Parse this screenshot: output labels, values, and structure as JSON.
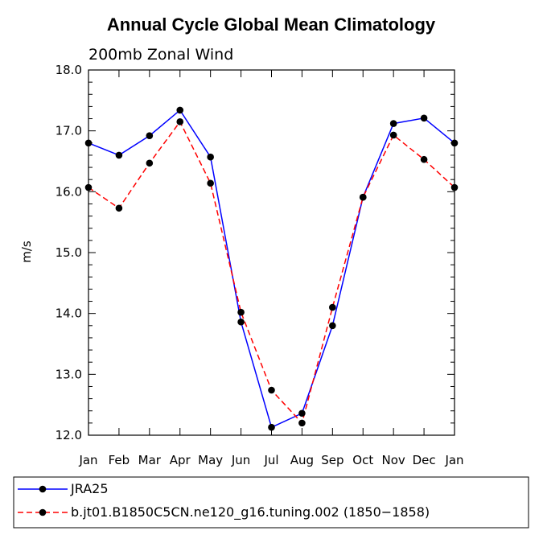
{
  "chart_data": {
    "type": "line",
    "title": "Annual Cycle Global Mean Climatology",
    "subtitle": "200mb Zonal Wind",
    "xlabel": "",
    "ylabel": "m/s",
    "categories": [
      "Jan",
      "Feb",
      "Mar",
      "Apr",
      "May",
      "Jun",
      "Jul",
      "Aug",
      "Sep",
      "Oct",
      "Nov",
      "Dec",
      "Jan"
    ],
    "ylim": [
      12.0,
      18.0
    ],
    "yticks": [
      "12.0",
      "13.0",
      "14.0",
      "15.0",
      "16.0",
      "17.0",
      "18.0"
    ],
    "series": [
      {
        "name": "JRA25",
        "color": "#0000ff",
        "style": "solid",
        "values": [
          16.8,
          16.6,
          16.92,
          17.34,
          16.57,
          13.86,
          12.13,
          12.36,
          13.8,
          15.91,
          17.12,
          17.21,
          16.8
        ]
      },
      {
        "name": "b.jt01.B1850C5CN.ne120_g16.tuning.002 (1850−1858)",
        "color": "#ff0000",
        "style": "dashed",
        "values": [
          16.07,
          15.73,
          16.47,
          17.15,
          16.14,
          14.02,
          12.74,
          12.2,
          14.1,
          15.91,
          16.93,
          16.53,
          16.07
        ]
      }
    ]
  }
}
